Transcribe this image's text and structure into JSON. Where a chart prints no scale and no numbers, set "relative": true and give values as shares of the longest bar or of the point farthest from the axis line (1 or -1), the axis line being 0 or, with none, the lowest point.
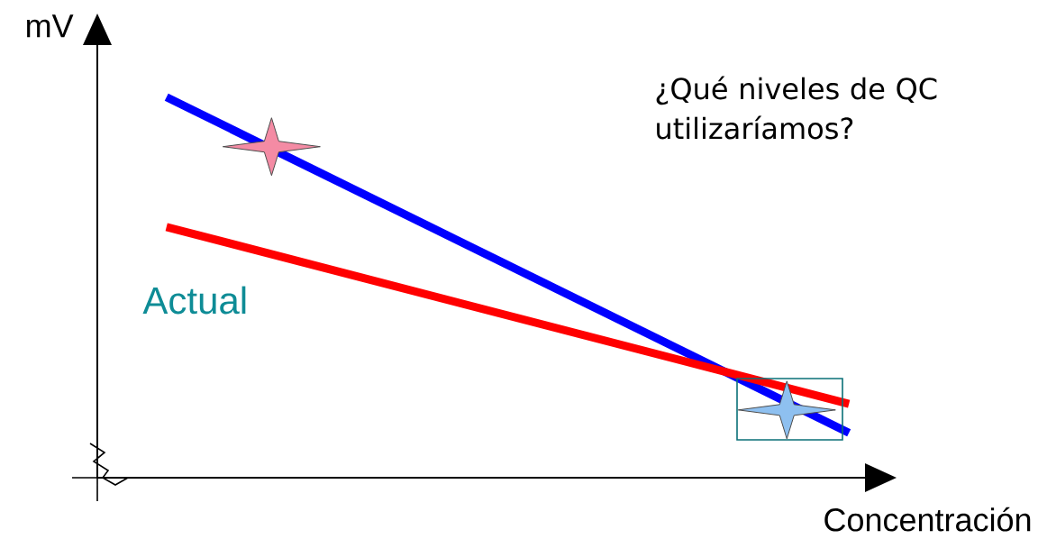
{
  "chart_data": {
    "type": "line",
    "relative": true,
    "xlabel": "Concentración",
    "ylabel": "mV",
    "categories": [
      null,
      null
    ],
    "series": [
      {
        "color": "#0000ff",
        "values": [
          1,
          0.118
        ]
      },
      {
        "color": "#ff0000",
        "values": [
          0.659,
          0.194
        ]
      }
    ],
    "annotations": [
      "¿Qué niveles de QC utilizaríamos?",
      "Actual"
    ],
    "marker": "none",
    "line_style": "solid"
  }
}
